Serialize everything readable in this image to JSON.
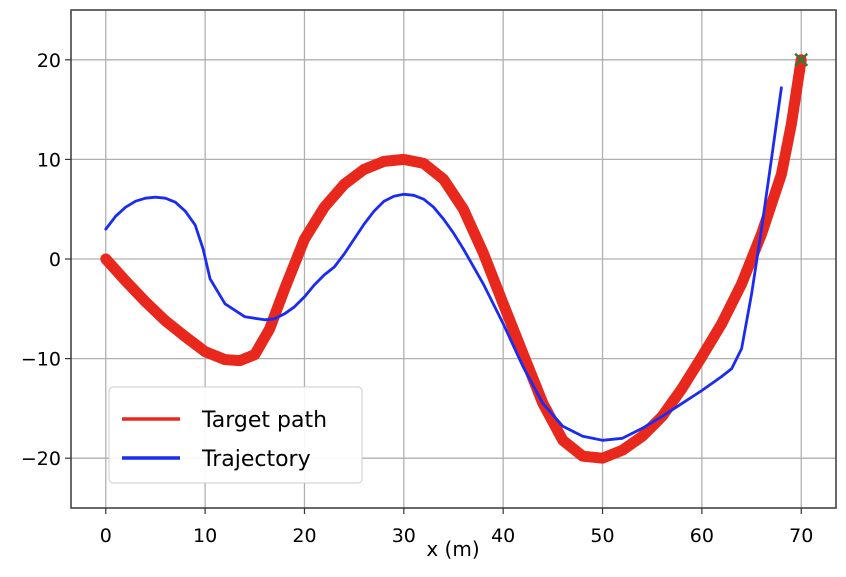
{
  "chart_data": {
    "type": "line",
    "title": "",
    "xlabel": "x (m)",
    "ylabel": "",
    "xlim": [
      -3.5,
      73.5
    ],
    "ylim": [
      -25,
      25
    ],
    "xticks": [
      0,
      10,
      20,
      30,
      40,
      50,
      60,
      70
    ],
    "yticks": [
      -20,
      -10,
      0,
      10,
      20
    ],
    "xtick_labels": [
      "0",
      "10",
      "20",
      "30",
      "40",
      "50",
      "60",
      "70"
    ],
    "ytick_labels": [
      "−20",
      "−10",
      "0",
      "10",
      "20"
    ],
    "grid": true,
    "legend_position": "lower-left",
    "series": [
      {
        "name": "Target path",
        "color": "#e8281c",
        "x": [
          0,
          2,
          4,
          6,
          8,
          10,
          12,
          13.5,
          15,
          16.5,
          18,
          20,
          22,
          24,
          26,
          28,
          30,
          32,
          34,
          36,
          38,
          40,
          42,
          44,
          46,
          48,
          50,
          52,
          54,
          56,
          58,
          60,
          62,
          64,
          66,
          68,
          69,
          70
        ],
        "y": [
          0,
          -2.2,
          -4.3,
          -6.2,
          -7.8,
          -9.3,
          -10.1,
          -10.2,
          -9.6,
          -7.0,
          -3.0,
          2.0,
          5.2,
          7.5,
          9.0,
          9.8,
          10.0,
          9.6,
          8.0,
          5.0,
          0.6,
          -4.5,
          -9.5,
          -14.5,
          -18.2,
          -19.8,
          -20.0,
          -19.2,
          -17.8,
          -15.8,
          -13.0,
          -9.8,
          -6.5,
          -2.5,
          2.5,
          8.5,
          13.5,
          20.0
        ]
      },
      {
        "name": "Trajectory",
        "color": "#1a2cf2",
        "x": [
          0,
          1,
          2,
          3,
          4,
          5,
          6,
          7,
          8,
          9,
          9.8,
          10.5,
          12,
          14,
          16,
          17,
          18,
          19,
          20,
          21,
          22,
          23,
          24,
          25,
          26,
          27,
          28,
          29,
          30,
          31,
          32,
          33,
          34,
          35,
          36,
          38,
          40,
          42,
          44,
          46,
          48,
          50,
          52,
          54,
          56,
          58,
          60,
          62,
          63,
          64,
          65,
          66,
          67,
          68
        ],
        "y": [
          3.0,
          4.3,
          5.2,
          5.8,
          6.1,
          6.2,
          6.1,
          5.7,
          4.8,
          3.4,
          1.0,
          -2.0,
          -4.5,
          -5.8,
          -6.1,
          -6.0,
          -5.5,
          -4.8,
          -3.8,
          -2.6,
          -1.6,
          -0.8,
          0.5,
          2.0,
          3.5,
          4.8,
          5.8,
          6.3,
          6.5,
          6.4,
          6.0,
          5.2,
          4.0,
          2.6,
          1.0,
          -2.5,
          -6.5,
          -10.8,
          -14.5,
          -16.8,
          -17.8,
          -18.2,
          -18.0,
          -17.0,
          -15.8,
          -14.5,
          -13.2,
          -11.8,
          -11.0,
          -9.0,
          -3.5,
          3.0,
          10.0,
          17.2
        ]
      }
    ],
    "markers": [
      {
        "x": 70,
        "y": 20,
        "symbol": "×",
        "color": "#2e7d32"
      }
    ]
  }
}
